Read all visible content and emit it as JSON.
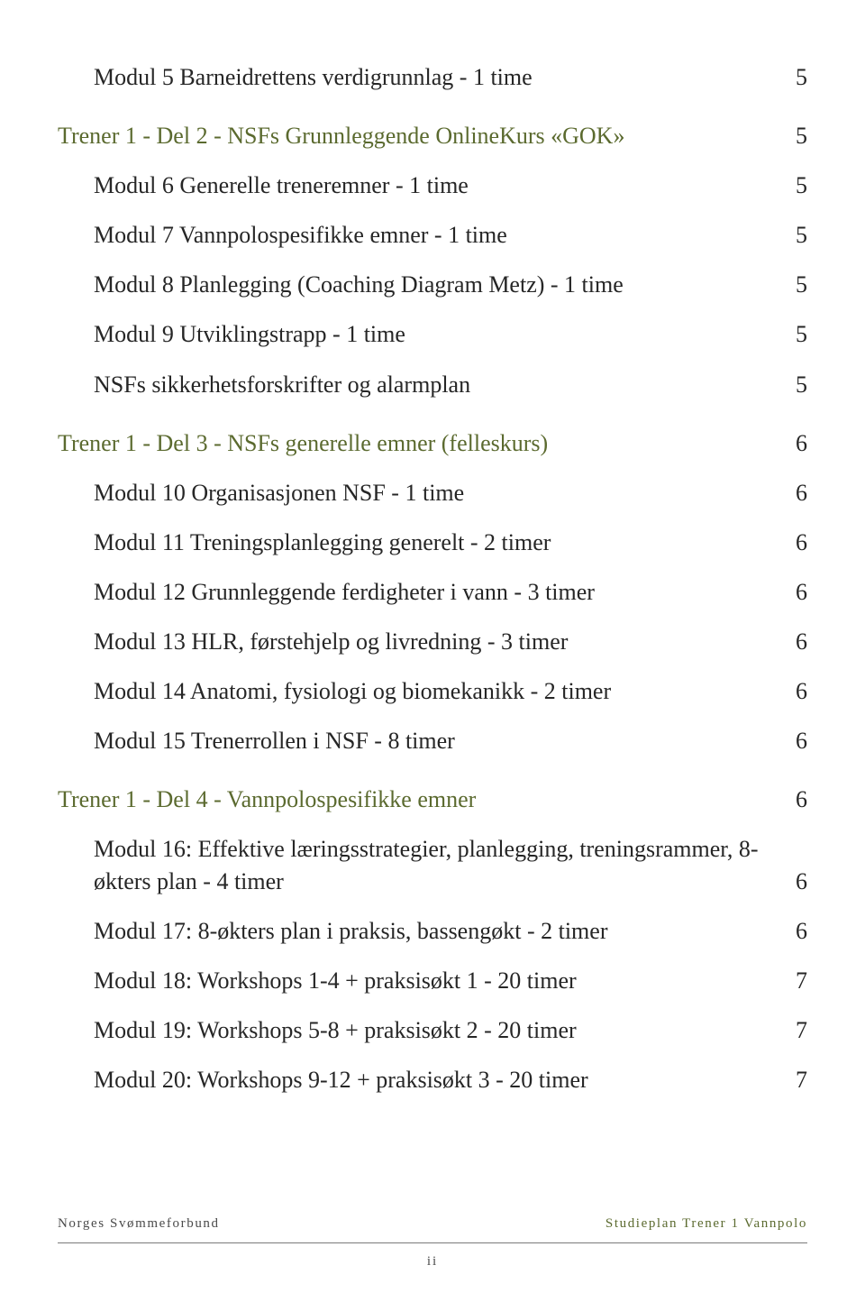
{
  "colors": {
    "section_heading": "#5b6a2f",
    "body_text": "#262626",
    "footer_text": "#4a4a4a",
    "footer_right": "#5b6a2f",
    "rule": "#7a7a7a",
    "background": "#ffffff"
  },
  "typography": {
    "font_family": "Palatino Linotype, Book Antiqua, Palatino, Georgia, serif",
    "lvl1_size_pt": 20,
    "lvl2_size_pt": 20,
    "footer_size_pt": 11
  },
  "toc": [
    {
      "level": 2,
      "label": "Modul 5 Barneidrettens verdigrunnlag - 1 time",
      "page": "5"
    },
    {
      "level": 1,
      "label": "Trener 1 - Del 2 - NSFs Grunnleggende OnlineKurs «GOK»",
      "page": "5"
    },
    {
      "level": 2,
      "label": "Modul 6 Generelle treneremner - 1 time",
      "page": "5"
    },
    {
      "level": 2,
      "label": "Modul 7 Vannpolospesifikke emner - 1 time",
      "page": "5"
    },
    {
      "level": 2,
      "label": "Modul 8 Planlegging (Coaching Diagram Metz) - 1 time",
      "page": "5"
    },
    {
      "level": 2,
      "label": "Modul 9 Utviklingstrapp - 1 time",
      "page": "5"
    },
    {
      "level": 2,
      "label": "NSFs sikkerhetsforskrifter og alarmplan",
      "page": "5"
    },
    {
      "level": 1,
      "label": "Trener 1 - Del 3 - NSFs generelle emner (felleskurs)",
      "page": "6"
    },
    {
      "level": 2,
      "label": "Modul 10 Organisasjonen NSF - 1 time",
      "page": "6"
    },
    {
      "level": 2,
      "label": "Modul 11 Treningsplanlegging generelt - 2 timer",
      "page": "6"
    },
    {
      "level": 2,
      "label": "Modul 12 Grunnleggende ferdigheter i vann - 3 timer",
      "page": "6"
    },
    {
      "level": 2,
      "label": "Modul 13 HLR, førstehjelp og livredning - 3 timer",
      "page": "6"
    },
    {
      "level": 2,
      "label": "Modul 14 Anatomi, fysiologi og biomekanikk - 2 timer",
      "page": "6"
    },
    {
      "level": 2,
      "label": "Modul 15 Trenerrollen i NSF - 8 timer",
      "page": "6"
    },
    {
      "level": 1,
      "label": "Trener 1 - Del 4 - Vannpolospesifikke emner",
      "page": "6"
    },
    {
      "level": 2,
      "label": "Modul 16: Effektive læringsstrategier, planlegging, treningsrammer, 8-økters plan - 4 timer",
      "page": "6"
    },
    {
      "level": 2,
      "label": "Modul 17: 8-økters plan i praksis, bassengøkt - 2 timer",
      "page": "6"
    },
    {
      "level": 2,
      "label": "Modul 18: Workshops 1-4 + praksisøkt 1 - 20 timer",
      "page": "7"
    },
    {
      "level": 2,
      "label": "Modul 19: Workshops 5-8 + praksisøkt 2 - 20 timer",
      "page": "7"
    },
    {
      "level": 2,
      "label": "Modul 20: Workshops 9-12 + praksisøkt 3 - 20 timer",
      "page": "7"
    }
  ],
  "footer": {
    "left": "Norges Svømmeforbund",
    "right": "Studieplan Trener 1 Vannpolo",
    "page_number": "ii"
  }
}
